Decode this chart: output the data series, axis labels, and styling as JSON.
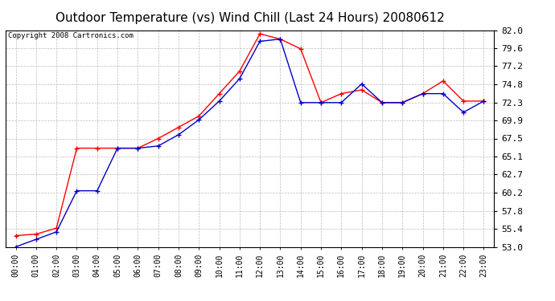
{
  "title": "Outdoor Temperature (vs) Wind Chill (Last 24 Hours) 20080612",
  "copyright": "Copyright 2008 Cartronics.com",
  "hours": [
    "00:00",
    "01:00",
    "02:00",
    "03:00",
    "04:00",
    "05:00",
    "06:00",
    "07:00",
    "08:00",
    "09:00",
    "10:00",
    "11:00",
    "12:00",
    "13:00",
    "14:00",
    "15:00",
    "16:00",
    "17:00",
    "18:00",
    "19:00",
    "20:00",
    "21:00",
    "22:00",
    "23:00"
  ],
  "outdoor_temp": [
    54.5,
    54.7,
    55.5,
    66.2,
    66.2,
    66.2,
    66.2,
    67.5,
    69.0,
    70.5,
    73.5,
    76.5,
    81.5,
    80.8,
    79.5,
    72.3,
    73.5,
    74.0,
    72.3,
    72.3,
    73.5,
    75.2,
    72.5,
    72.5
  ],
  "wind_chill": [
    53.0,
    54.0,
    55.0,
    60.5,
    60.5,
    66.2,
    66.2,
    66.5,
    68.0,
    70.0,
    72.5,
    75.5,
    80.5,
    80.8,
    72.3,
    72.3,
    72.3,
    74.8,
    72.3,
    72.3,
    73.5,
    73.5,
    71.0,
    72.5
  ],
  "outdoor_color": "#ff0000",
  "windchill_color": "#0000cc",
  "background_color": "#ffffff",
  "plot_bg_color": "#ffffff",
  "grid_color": "#bbbbbb",
  "ylim_min": 53.0,
  "ylim_max": 82.0,
  "yticks": [
    53.0,
    55.4,
    57.8,
    60.2,
    62.7,
    65.1,
    67.5,
    69.9,
    72.3,
    74.8,
    77.2,
    79.6,
    82.0
  ],
  "title_fontsize": 11,
  "copyright_fontsize": 6.5,
  "tick_fontsize": 7,
  "ytick_fontsize": 8,
  "marker": "+",
  "marker_size": 5,
  "line_width": 1.0
}
